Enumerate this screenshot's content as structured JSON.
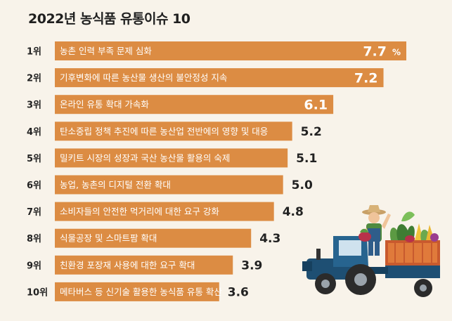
{
  "title": "2022년 농식품 유통이슈 10",
  "colors": {
    "bar": "#dc8c43",
    "background": "#f8f3ea"
  },
  "chart_data": {
    "type": "bar",
    "orientation": "horizontal",
    "unit_suffix_first": "%",
    "categories": [
      "농촌 인력 부족 문제 심화",
      "기후변화에 따른 농산물 생산의 불안정성 지속",
      "온라인 유통 확대 가속화",
      "탄소중립 정책 추진에 따른 농산업 전반에의 영향 및 대응",
      "밀키트 시장의 성장과 국산 농산물 활용의 숙제",
      "농업, 농촌의 디지털 전환 확대",
      "소비자들의 안전한 먹거리에 대한 요구 강화",
      "식물공장 및 스마트팜 확대",
      "친환경 포장재 사용에 대한 요구 확대",
      "메타버스 등 신기술 활용한 농식품 유통 확산"
    ],
    "ranks": [
      "1위",
      "2위",
      "3위",
      "4위",
      "5위",
      "6위",
      "7위",
      "8위",
      "9위",
      "10위"
    ],
    "values": [
      7.7,
      7.2,
      6.1,
      5.2,
      5.1,
      5.0,
      4.8,
      4.3,
      3.9,
      3.6
    ],
    "value_labels": [
      "7.7",
      "7.2",
      "6.1",
      "5.2",
      "5.1",
      "5.0",
      "4.8",
      "4.3",
      "3.9",
      "3.6"
    ]
  }
}
